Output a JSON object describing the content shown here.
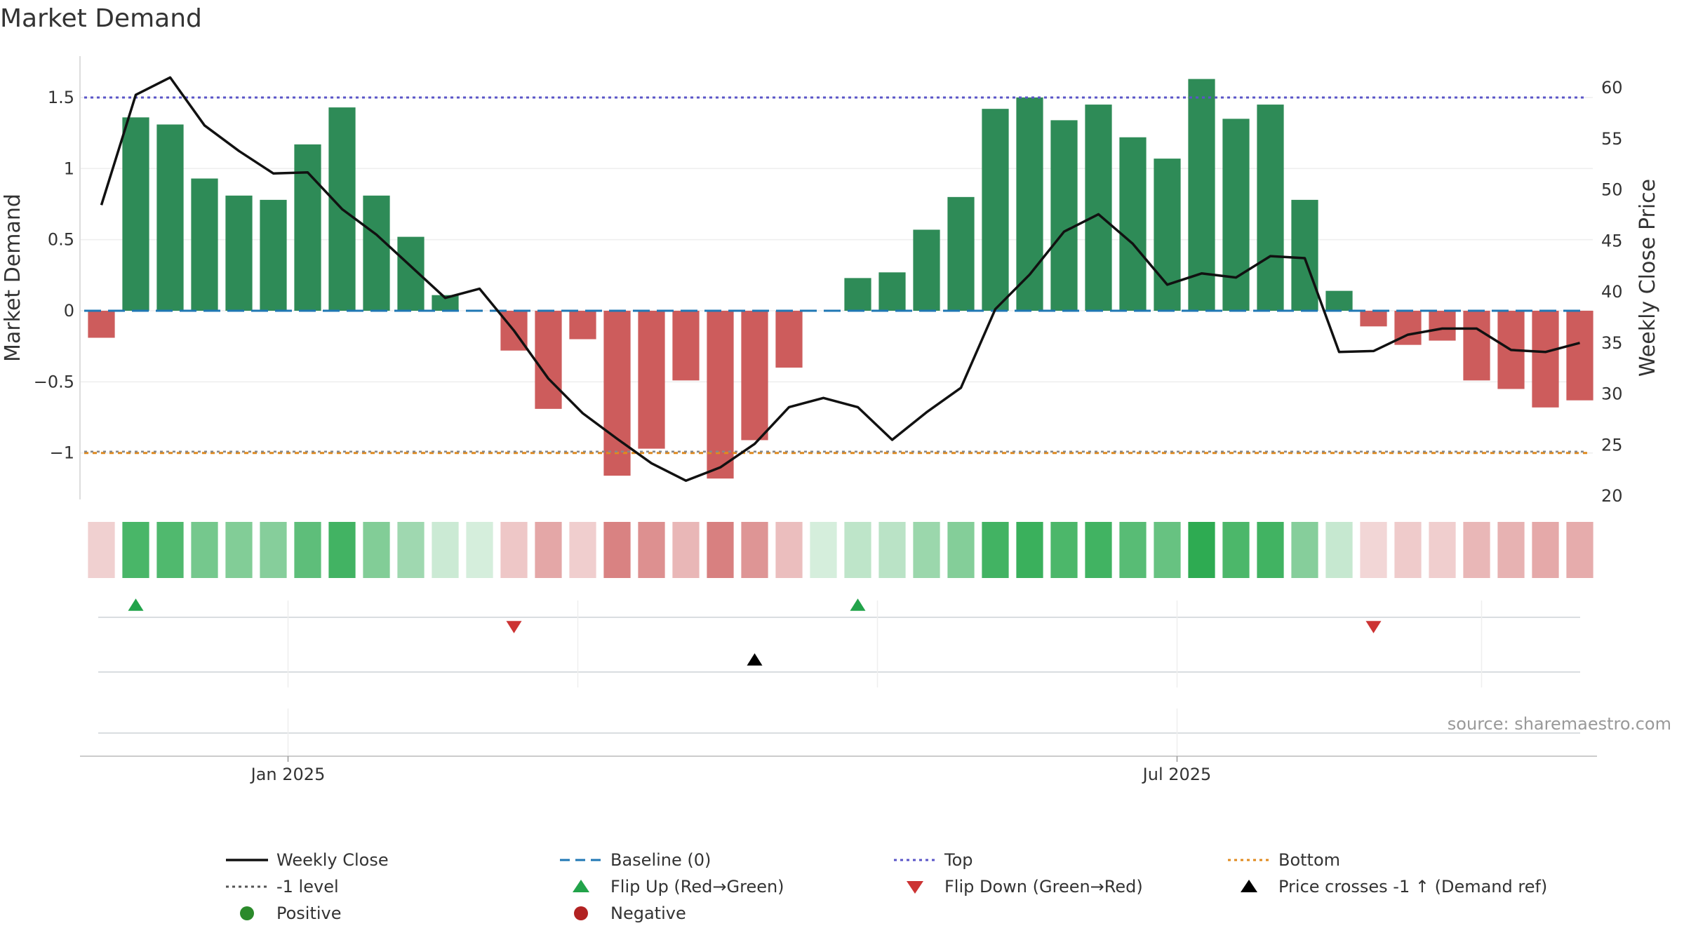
{
  "chart_data": {
    "type": "bar",
    "title": "Market Demand",
    "ylabel": "Market Demand",
    "y2label": "Weekly Close Price",
    "ylim": [
      -1.32,
      1.8
    ],
    "y2lim": [
      19.5,
      62.5
    ],
    "yticks": [
      {
        "v": 1.5,
        "label": "1.5"
      },
      {
        "v": 1,
        "label": "1"
      },
      {
        "v": 0.5,
        "label": "0.5"
      },
      {
        "v": 0,
        "label": "0"
      },
      {
        "v": -0.5,
        "label": "−0.5"
      },
      {
        "v": -1,
        "label": "−1"
      }
    ],
    "y2ticks": [
      60,
      55,
      50,
      45,
      40,
      35,
      30,
      25,
      20
    ],
    "xticks": [
      {
        "date": "2025-01-01",
        "label": "Jan 2025"
      },
      {
        "date": "2025-07-01",
        "label": "Jul 2025"
      }
    ],
    "x": [
      "2024-11-24",
      "2024-12-01",
      "2024-12-08",
      "2024-12-15",
      "2024-12-22",
      "2024-12-29",
      "2025-01-05",
      "2025-01-12",
      "2025-01-19",
      "2025-01-26",
      "2025-02-02",
      "2025-02-09",
      "2025-02-16",
      "2025-02-23",
      "2025-03-02",
      "2025-03-09",
      "2025-03-16",
      "2025-03-23",
      "2025-03-30",
      "2025-04-06",
      "2025-04-13",
      "2025-04-20",
      "2025-04-27",
      "2025-05-04",
      "2025-05-11",
      "2025-05-18",
      "2025-05-25",
      "2025-06-01",
      "2025-06-08",
      "2025-06-15",
      "2025-06-22",
      "2025-06-29",
      "2025-07-06",
      "2025-07-13",
      "2025-07-20",
      "2025-07-27",
      "2025-08-03",
      "2025-08-10",
      "2025-08-17",
      "2025-08-24",
      "2025-08-31",
      "2025-09-07",
      "2025-09-14",
      "2025-09-21"
    ],
    "series": [
      {
        "name": "Market Demand",
        "type": "bar",
        "values": [
          -0.19,
          1.36,
          1.31,
          0.93,
          0.81,
          0.78,
          1.17,
          1.43,
          0.81,
          0.52,
          0.11,
          0.0,
          -0.28,
          -0.69,
          -0.2,
          -1.16,
          -0.97,
          -0.49,
          -1.18,
          -0.91,
          -0.4,
          0.0,
          0.23,
          0.27,
          0.57,
          0.8,
          1.42,
          1.5,
          1.34,
          1.45,
          1.22,
          1.07,
          1.63,
          1.35,
          1.45,
          0.78,
          0.14,
          -0.11,
          -0.24,
          -0.21,
          -0.49,
          -0.55,
          -0.68,
          -0.63
        ]
      },
      {
        "name": "Weekly Close",
        "type": "line",
        "values": [
          48.5,
          59.3,
          61.0,
          56.3,
          53.8,
          51.6,
          51.7,
          48.1,
          45.6,
          42.5,
          39.4,
          40.3,
          36.2,
          31.5,
          28.1,
          25.6,
          23.2,
          21.5,
          22.8,
          25.1,
          28.7,
          29.6,
          28.7,
          25.5,
          28.2,
          30.6,
          38.3,
          41.7,
          45.9,
          47.6,
          44.7,
          40.7,
          41.8,
          41.4,
          43.5,
          43.3,
          34.1,
          34.2,
          35.8,
          36.4,
          36.4,
          34.3,
          34.1,
          35.0
        ]
      }
    ],
    "reference_lines": [
      {
        "name": "Baseline (0)",
        "value": 0,
        "color": "#1f77b4"
      },
      {
        "name": "Top",
        "value": 1.5,
        "color": "#5a55c8"
      },
      {
        "name": "Bottom",
        "value": -1,
        "color": "#e08a1e"
      },
      {
        "name": "-1 level",
        "value": -1,
        "color": "#888888"
      }
    ],
    "markers": {
      "flip_up": [
        1,
        22
      ],
      "flip_down": [
        12,
        37
      ],
      "price_cross": [
        19
      ]
    },
    "colors": {
      "positive": "#2e8b57",
      "negative": "#cd5c5c",
      "line": "#111111",
      "flip_up": "#22a34a",
      "flip_down": "#cc3333",
      "cross": "#000000",
      "positive_dot": "#2b8a2b",
      "negative_dot": "#b22222"
    },
    "legend": {
      "placement": "bottom",
      "items": [
        {
          "label": "Weekly Close",
          "kind": "line",
          "color": "#111111"
        },
        {
          "label": "Baseline (0)",
          "kind": "dash",
          "color": "#1f77b4"
        },
        {
          "label": "Top",
          "kind": "dot",
          "color": "#5a55c8"
        },
        {
          "label": "Bottom",
          "kind": "dot",
          "color": "#e08a1e"
        },
        {
          "label": "-1 level",
          "kind": "dot",
          "color": "#555555"
        },
        {
          "label": "Flip Up (Red→Green)",
          "kind": "tri-up",
          "color": "#22a34a"
        },
        {
          "label": "Flip Down (Green→Red)",
          "kind": "tri-down",
          "color": "#cc3333"
        },
        {
          "label": "Price crosses -1 ↑ (Demand ref)",
          "kind": "tri-up",
          "color": "#000000"
        },
        {
          "label": "Positive",
          "kind": "circle",
          "color": "#2b8a2b"
        },
        {
          "label": "Negative",
          "kind": "circle",
          "color": "#b22222"
        }
      ]
    },
    "source": "source: sharemaestro.com",
    "grid": true
  }
}
